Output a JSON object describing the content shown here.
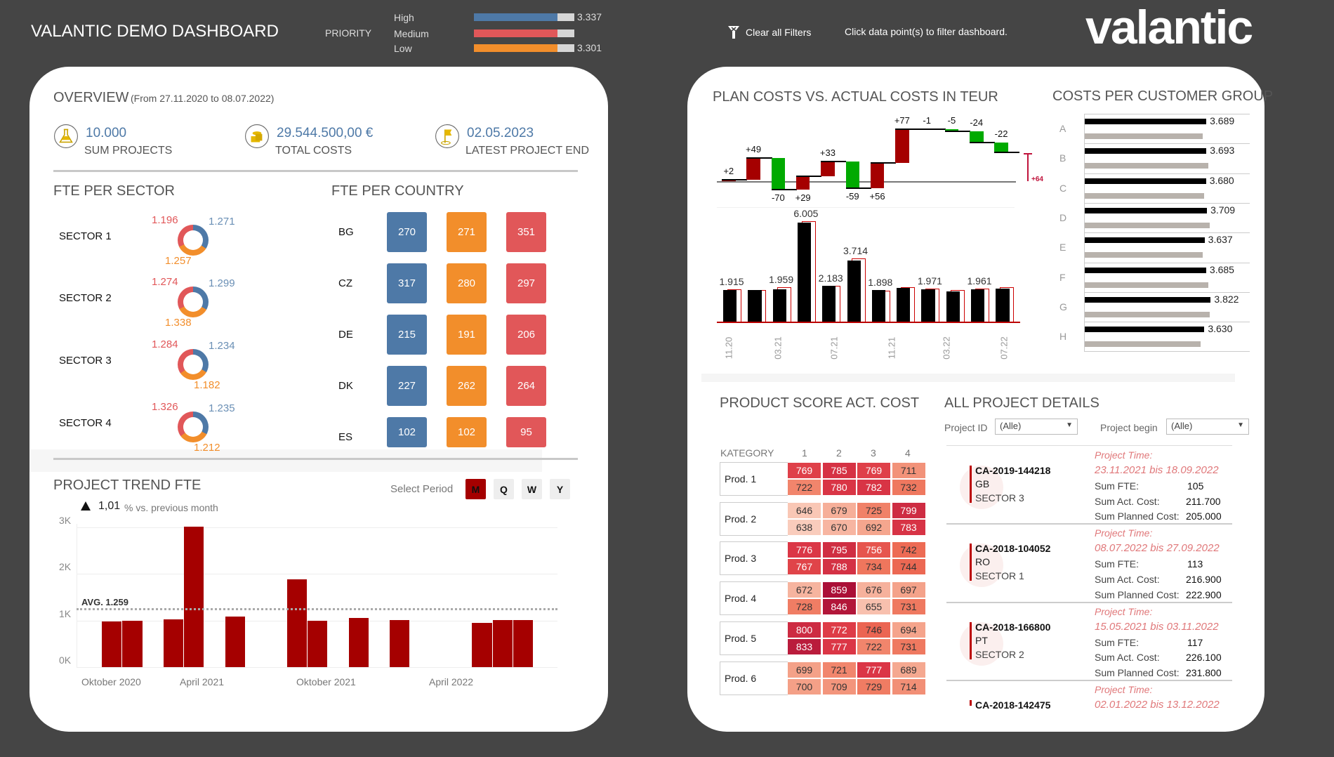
{
  "header": {
    "title": "VALANTIC DEMO DASHBOARD",
    "priority_label": "PRIORITY",
    "priorities": [
      {
        "label": "High",
        "value": "3.337",
        "fill": 0.83,
        "color": "#4e79a7"
      },
      {
        "label": "Medium",
        "fill": 0.83,
        "color": "#e15759"
      },
      {
        "label": "Low",
        "value": "3.301",
        "fill": 0.83,
        "color": "#f28e2b"
      }
    ],
    "clear_filters": "Clear all Filters",
    "hint": "Click data point(s) to filter dashboard.",
    "logo": "valantic"
  },
  "overview": {
    "title": "OVERVIEW",
    "range": "(From 27.11.2020  to 08.07.2022)",
    "kpis": [
      {
        "icon": "flask-icon",
        "value": "10.000",
        "label": "SUM PROJECTS"
      },
      {
        "icon": "coins-icon",
        "value": "29.544.500,00 €",
        "label": "TOTAL COSTS"
      },
      {
        "icon": "flag-icon",
        "value": "02.05.2023",
        "label": "LATEST PROJECT END"
      }
    ],
    "accent": "#4e79a7"
  },
  "fte_sector": {
    "title": "FTE PER SECTOR",
    "sectors": [
      {
        "label": "SECTOR 1",
        "blue": "1.271",
        "orange": "1.257",
        "red": "1.196"
      },
      {
        "label": "SECTOR 2",
        "blue": "1.299",
        "orange": "1.338",
        "red": "1.274"
      },
      {
        "label": "SECTOR 3",
        "blue": "1.234",
        "orange": "1.182",
        "red": "1.284"
      },
      {
        "label": "SECTOR 4",
        "blue": "1.235",
        "orange": "1.212",
        "red": "1.326"
      }
    ]
  },
  "fte_country": {
    "title": "FTE PER COUNTRY",
    "colors": [
      "#4e79a7",
      "#f28e2b",
      "#e15759"
    ],
    "countries": [
      {
        "code": "BG",
        "values": [
          "270",
          "271",
          "351"
        ]
      },
      {
        "code": "CZ",
        "values": [
          "317",
          "280",
          "297"
        ]
      },
      {
        "code": "DE",
        "values": [
          "215",
          "191",
          "206"
        ]
      },
      {
        "code": "DK",
        "values": [
          "227",
          "262",
          "264"
        ]
      },
      {
        "code": "ES",
        "values": [
          "102",
          "102",
          "95"
        ]
      }
    ]
  },
  "trend": {
    "title": "PROJECT TREND FTE",
    "select_period": "Select Period",
    "periods": [
      "M",
      "Q",
      "W",
      "Y"
    ],
    "active_period": "M",
    "change_value": "1,01",
    "change_suffix": "% vs. previous month",
    "avg_label": "AVG. 1.259"
  },
  "plan_costs": {
    "title": "PLAN COSTS VS. ACTUAL COSTS IN TEUR",
    "net_label": "+64"
  },
  "customer_groups": {
    "title": "COSTS PER CUSTOMER GROUP"
  },
  "product_score": {
    "title": "PRODUCT SCORE ACT. COST",
    "header": "KATEGORY"
  },
  "projects": {
    "title": "ALL PROJECT DETAILS",
    "filters": [
      {
        "label": "Project ID",
        "value": "(Alle)"
      },
      {
        "label": "Project begin",
        "value": "(Alle)"
      }
    ],
    "time_label": "Project Time:",
    "fte_label": "Sum FTE:",
    "act_label": "Sum Act. Cost:",
    "plan_label": "Sum Planned Cost:",
    "items": [
      {
        "id": "CA-2019-144218",
        "country": "GB",
        "sector": "SECTOR 3",
        "time": "23.11.2021 bis 18.09.2022",
        "fte": "105",
        "act": "211.700",
        "plan": "205.000"
      },
      {
        "id": "CA-2018-104052",
        "country": "RO",
        "sector": "SECTOR 1",
        "time": "08.07.2022 bis 27.09.2022",
        "fte": "113",
        "act": "216.900",
        "plan": "222.900"
      },
      {
        "id": "CA-2018-166800",
        "country": "PT",
        "sector": "SECTOR 2",
        "time": "15.05.2021 bis 03.11.2022",
        "fte": "117",
        "act": "226.100",
        "plan": "231.800"
      },
      {
        "id": "CA-2018-142475",
        "time": "02.01.2022 bis 13.12.2022"
      }
    ]
  },
  "chart_data": [
    {
      "id": "trend",
      "type": "bar",
      "color": "#a50000",
      "x": [
        "2020-11",
        "2020-12",
        "2021-02",
        "2021-03",
        "2021-05",
        "2021-08",
        "2021-09",
        "2021-11",
        "2022-01",
        "2022-05",
        "2022-06",
        "2022-07"
      ],
      "values": [
        980,
        990,
        1020,
        3020,
        1090,
        1880,
        990,
        1050,
        1010,
        950,
        1010,
        1010
      ],
      "ylim": [
        0,
        3000
      ],
      "yticks": [
        {
          "v": 0,
          "label": "0K"
        },
        {
          "v": 1000,
          "label": "1K"
        },
        {
          "v": 2000,
          "label": "2K"
        },
        {
          "v": 3000,
          "label": "3K"
        }
      ],
      "xtick_labels": [
        "Oktober 2020",
        "April 2021",
        "Oktober 2021",
        "April 2022"
      ],
      "average": 1259
    },
    {
      "id": "waterfall",
      "type": "bar",
      "subtype": "waterfall",
      "deltas": [
        2,
        49,
        -70,
        29,
        33,
        -59,
        56,
        77,
        -1,
        -5,
        -24,
        -22
      ],
      "labels": [
        "+2",
        "+49",
        "-70",
        "+29",
        "+33",
        "-59",
        "+56",
        "+77",
        "-1",
        "-5",
        "-24",
        "-22"
      ],
      "increase_color": "#a50000",
      "decrease_color": "#00aa00"
    },
    {
      "id": "plan_vs_actual",
      "type": "bar",
      "x": [
        "11.20",
        "12.20",
        "01.21",
        "02.21",
        "03.21",
        "04.21",
        "05.21",
        "06.21",
        "07.21",
        "08.21",
        "09.21",
        "10.21"
      ],
      "xtick_labels": [
        "11.20",
        "03.21",
        "07.21",
        "11.21",
        "03.22",
        "07.22"
      ],
      "series": [
        {
          "values": [
            1915,
            1930,
            1959,
            6005,
            2183,
            3714,
            1898,
            2050,
            1971,
            1840,
            1961,
            2000
          ],
          "color": "#000000"
        },
        {
          "values": [
            1960,
            1930,
            2080,
            6080,
            2190,
            3830,
            1880,
            2080,
            2020,
            1910,
            2020,
            2080
          ],
          "color": "#cc0000"
        }
      ],
      "value_labels": [
        "1.915",
        null,
        "1.959",
        "6.005",
        "2.183",
        "3.714",
        "1.898",
        null,
        "1.971",
        null,
        "1.961",
        null
      ]
    },
    {
      "id": "customer_groups",
      "type": "bar",
      "orientation": "horizontal",
      "categories": [
        "A",
        "B",
        "C",
        "D",
        "E",
        "F",
        "G",
        "H"
      ],
      "series": [
        {
          "values": [
            3.689,
            3.693,
            3.68,
            3.709,
            3.637,
            3.685,
            3.822,
            3.63
          ],
          "labels": [
            "3.689",
            "3.693",
            "3.680",
            "3.709",
            "3.637",
            "3.685",
            "3.822",
            "3.630"
          ],
          "color": "#000000"
        },
        {
          "values": [
            3.59,
            3.74,
            3.63,
            3.8,
            3.57,
            3.74,
            3.79,
            3.52
          ],
          "color": "#b8b2ac"
        }
      ]
    },
    {
      "id": "product_score",
      "type": "heatmap",
      "columns": [
        "1",
        "2",
        "3",
        "4"
      ],
      "rows": [
        {
          "label": "Prod. 1",
          "values": [
            [
              769,
              785,
              769,
              711
            ],
            [
              722,
              780,
              782,
              732
            ]
          ]
        },
        {
          "label": "Prod. 2",
          "values": [
            [
              646,
              679,
              725,
              799
            ],
            [
              638,
              670,
              692,
              783
            ]
          ]
        },
        {
          "label": "Prod. 3",
          "values": [
            [
              776,
              795,
              756,
              742
            ],
            [
              767,
              788,
              734,
              744
            ]
          ]
        },
        {
          "label": "Prod. 4",
          "values": [
            [
              672,
              859,
              676,
              697
            ],
            [
              728,
              846,
              655,
              731
            ]
          ]
        },
        {
          "label": "Prod. 5",
          "values": [
            [
              800,
              772,
              746,
              694
            ],
            [
              833,
              777,
              722,
              731
            ]
          ]
        },
        {
          "label": "Prod. 6",
          "values": [
            [
              699,
              721,
              777,
              689
            ],
            [
              700,
              709,
              729,
              714
            ]
          ]
        }
      ]
    }
  ]
}
